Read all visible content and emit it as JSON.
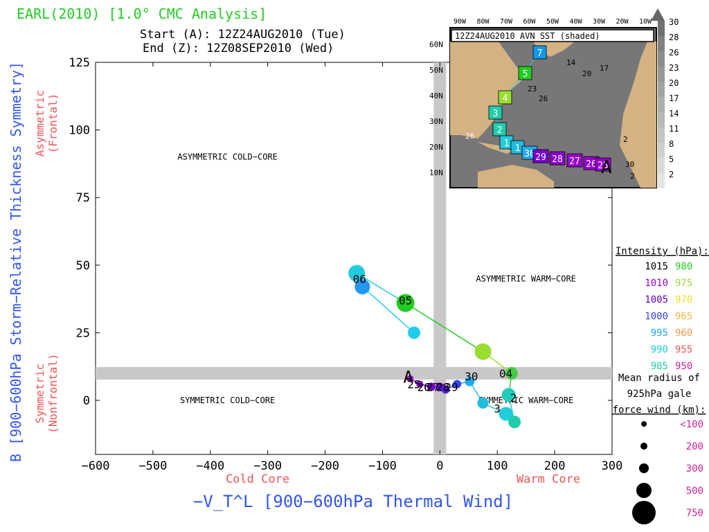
{
  "title": "EARL(2010) [1.0° CMC Analysis]",
  "start_text": "Start (A): 12Z24AUG2010 (Tue)",
  "end_text": "End (Z): 12Z08SEP2010 (Wed)",
  "colors": {
    "title": "#22cc22",
    "axis_label": "#3355ee",
    "side_label": "#ee5555",
    "pink": "#cc2299"
  },
  "chart_data": {
    "type": "scatter",
    "xlabel": "−V_T^L [900−600hPa Thermal Wind]",
    "ylabel": "B [900−600hPa Storm−Relative Thickness Symmetry]",
    "xlim": [
      -600,
      300
    ],
    "ylim": [
      -20,
      125
    ],
    "x_ticks": [
      -600,
      -500,
      -400,
      -300,
      -200,
      -100,
      0,
      100,
      200,
      300
    ],
    "y_ticks": [
      0,
      25,
      50,
      75,
      100,
      125
    ],
    "x_under_labels": {
      "left": "Cold Core",
      "right": "Warm Core"
    },
    "y_side_labels": {
      "upper": [
        "Asymmetric",
        "(Frontal)"
      ],
      "lower": [
        "Symmetric",
        "(Nonfrontal)"
      ]
    },
    "quadrants": [
      "ASYMMETRIC COLD−CORE",
      "ASYMMETRIC WARM−CORE",
      "SYMMETRIC COLD−CORE",
      "SYMMETRIC WARM−CORE"
    ],
    "grid": false,
    "track": [
      {
        "x": -52,
        "y": 8,
        "color": "#9900cc",
        "size": 5,
        "label": "A"
      },
      {
        "x": -35,
        "y": 6,
        "color": "#8800cc",
        "size": 5,
        "label": "25"
      },
      {
        "x": -15,
        "y": 5,
        "color": "#7700cc",
        "size": 6,
        "label": "26"
      },
      {
        "x": 0,
        "y": 5,
        "color": "#6600cc",
        "size": 6,
        "label": "27"
      },
      {
        "x": 10,
        "y": 4,
        "color": "#5522dd",
        "size": 6,
        "label": "28"
      },
      {
        "x": 30,
        "y": 6,
        "color": "#3344ee",
        "size": 6,
        "label": "29"
      },
      {
        "x": 52,
        "y": 7,
        "color": "#22aaee",
        "size": 7,
        "label": "30"
      },
      {
        "x": 75,
        "y": -1,
        "color": "#22bbdd",
        "size": 8,
        "label": "31"
      },
      {
        "x": 115,
        "y": -5,
        "color": "#22ccdd",
        "size": 10,
        "label": "01"
      },
      {
        "x": 130,
        "y": -8,
        "color": "#22ccaa",
        "size": 9,
        "label": "02"
      },
      {
        "x": 120,
        "y": 2,
        "color": "#22ccbb",
        "size": 10,
        "label": "03"
      },
      {
        "x": 125,
        "y": 10,
        "color": "#44cc44",
        "size": 9,
        "label": "04"
      },
      {
        "x": 75,
        "y": 18,
        "color": "#99dd33",
        "size": 12,
        "label": "04"
      },
      {
        "x": -60,
        "y": 36,
        "color": "#22cc22",
        "size": 13,
        "label": "05"
      },
      {
        "x": -145,
        "y": 47,
        "color": "#22ccdd",
        "size": 12,
        "label": "06"
      },
      {
        "x": -135,
        "y": 42,
        "color": "#2299ee",
        "size": 11,
        "label": ""
      },
      {
        "x": -45,
        "y": 25,
        "color": "#22ccee",
        "size": 9,
        "label": ""
      }
    ],
    "labels_on_plot": [
      {
        "text": "A",
        "x": -55,
        "y": 8
      },
      {
        "text": "25",
        "x": -45,
        "y": 6
      },
      {
        "text": "26",
        "x": -28,
        "y": 5
      },
      {
        "text": "27",
        "x": -12,
        "y": 5
      },
      {
        "text": "28",
        "x": 5,
        "y": 5
      },
      {
        "text": "29",
        "x": 20,
        "y": 5
      },
      {
        "text": "30",
        "x": 55,
        "y": 9
      },
      {
        "text": "04",
        "x": 115,
        "y": 10
      },
      {
        "text": "05",
        "x": -60,
        "y": 37
      },
      {
        "text": "06",
        "x": -140,
        "y": 45
      },
      {
        "text": "3",
        "x": 100,
        "y": -3
      },
      {
        "text": "2",
        "x": 128,
        "y": 1
      }
    ],
    "legend_intensity": {
      "title": "Intensity (hPa):",
      "rows": [
        {
          "a": "1015",
          "ac": "#000000",
          "b": "980",
          "bc": "#22cc22"
        },
        {
          "a": "1010",
          "ac": "#9900cc",
          "b": "975",
          "bc": "#99dd33"
        },
        {
          "a": "1005",
          "ac": "#6600cc",
          "b": "970",
          "bc": "#eedd22"
        },
        {
          "a": "1000",
          "ac": "#3344ee",
          "b": "965",
          "bc": "#eebb44"
        },
        {
          "a": "995",
          "ac": "#22aaee",
          "b": "960",
          "bc": "#ee9944"
        },
        {
          "a": "990",
          "ac": "#22ccdd",
          "b": "955",
          "bc": "#ee5555"
        },
        {
          "a": "985",
          "ac": "#22ccaa",
          "b": "950",
          "bc": "#cc2299"
        }
      ]
    },
    "legend_radius": {
      "title_lines": [
        "Mean radius of",
        "925hPa gale",
        "force wind (km):"
      ],
      "items": [
        {
          "label": "<100",
          "r": 4
        },
        {
          "label": "200",
          "r": 5
        },
        {
          "label": "300",
          "r": 7
        },
        {
          "label": "500",
          "r": 11
        },
        {
          "label": "750",
          "r": 17
        }
      ]
    }
  },
  "inset": {
    "title": "12Z24AUG2010 AVN SST (shaded)",
    "lon_labels": [
      "90W",
      "80W",
      "70W",
      "60W",
      "50W",
      "40W",
      "30W",
      "20W",
      "10W"
    ],
    "lat_labels": [
      "60N",
      "50N",
      "40N",
      "30N",
      "20N",
      "10N"
    ],
    "colorbar": [
      "30",
      "28",
      "26",
      "23",
      "20",
      "17",
      "14",
      "11",
      "8",
      "5",
      "2"
    ],
    "isotherms": [
      "14",
      "17",
      "20",
      "23",
      "26",
      "26",
      "30",
      "2",
      "2"
    ],
    "boxes": [
      {
        "label": "7",
        "color": "#1199ee"
      },
      {
        "label": "5",
        "color": "#22cc22"
      },
      {
        "label": "4",
        "color": "#99dd33"
      },
      {
        "label": "3",
        "color": "#22ccaa"
      },
      {
        "label": "2",
        "color": "#22ccaa"
      },
      {
        "label": "1",
        "color": "#22ccdd"
      },
      {
        "label": "1",
        "color": "#22bbdd"
      },
      {
        "label": "30",
        "color": "#22aaee"
      },
      {
        "label": "29",
        "color": "#7700cc"
      },
      {
        "label": "28",
        "color": "#8800cc"
      },
      {
        "label": "27",
        "color": "#9900cc"
      },
      {
        "label": "26",
        "color": "#9900cc"
      },
      {
        "label": "25",
        "color": "#9900cc"
      }
    ],
    "start_marker": "A"
  }
}
